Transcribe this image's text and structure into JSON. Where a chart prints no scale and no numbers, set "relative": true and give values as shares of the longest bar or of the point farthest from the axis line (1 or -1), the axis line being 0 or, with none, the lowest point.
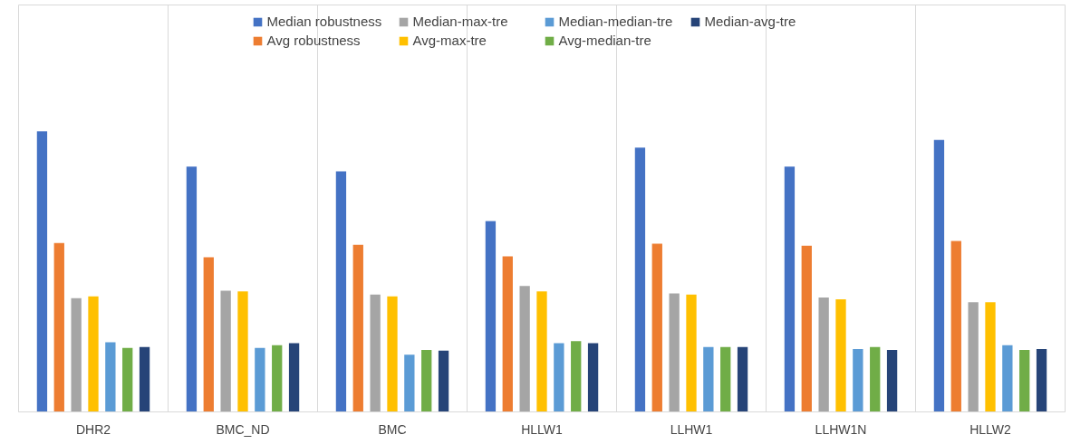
{
  "chart_data": {
    "type": "bar",
    "relative": true,
    "grid": "x",
    "legend": "top",
    "categories": [
      "DHR2",
      "BMC_ND",
      "BMC",
      "HLLW1",
      "LLHW1",
      "LLHW1N",
      "HLLW2"
    ],
    "series": [
      {
        "name": "Median robustness",
        "color": "#4472c4",
        "values": [
          1,
          0.874,
          0.857,
          0.68,
          0.942,
          0.874,
          0.969
        ]
      },
      {
        "name": "Avg robustness",
        "color": "#ed7d31",
        "values": [
          0.602,
          0.551,
          0.595,
          0.554,
          0.599,
          0.592,
          0.609
        ]
      },
      {
        "name": "Median-max-tre",
        "color": "#a5a5a5",
        "values": [
          0.405,
          0.432,
          0.418,
          0.449,
          0.422,
          0.408,
          0.391
        ]
      },
      {
        "name": "Avg-max-tre",
        "color": "#ffc000",
        "values": [
          0.412,
          0.429,
          0.412,
          0.429,
          0.418,
          0.401,
          0.391
        ]
      },
      {
        "name": "Median-median-tre",
        "color": "#5b9bd5",
        "values": [
          0.248,
          0.228,
          0.204,
          0.245,
          0.231,
          0.224,
          0.238
        ]
      },
      {
        "name": "Avg-median-tre",
        "color": "#70ad47",
        "values": [
          0.228,
          0.238,
          0.221,
          0.252,
          0.231,
          0.231,
          0.221
        ]
      },
      {
        "name": "Median-avg-tre",
        "color": "#264478",
        "values": [
          0.231,
          0.245,
          0.218,
          0.245,
          0.231,
          0.221,
          0.224
        ]
      }
    ]
  }
}
